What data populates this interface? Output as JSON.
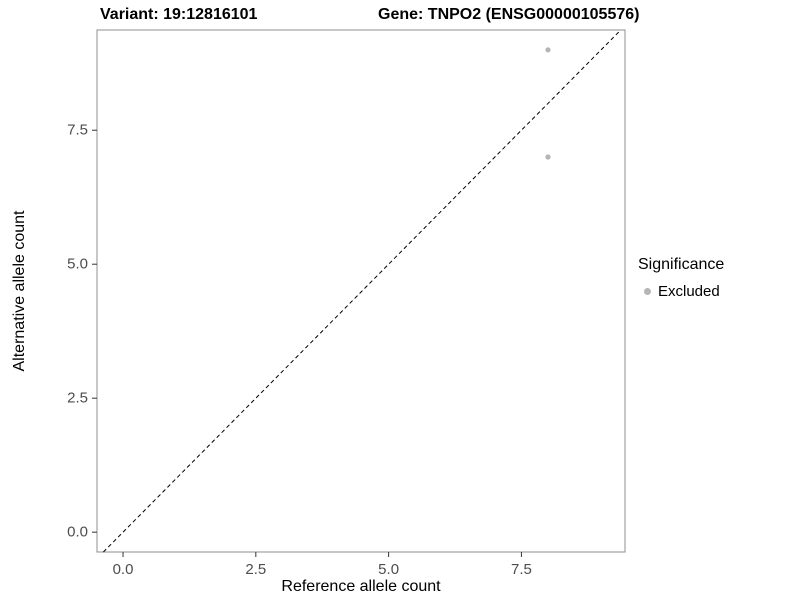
{
  "chart_data": {
    "type": "scatter",
    "title_left": "Variant: 19:12816101",
    "title_right": "Gene: TNPO2 (ENSG00000105576)",
    "xlabel": "Reference allele count",
    "ylabel": "Alternative allele count",
    "xlim": [
      -0.49,
      9.45
    ],
    "ylim": [
      -0.37,
      9.37
    ],
    "xticks": [
      0,
      2.5,
      5,
      7.5
    ],
    "xtick_labels": [
      "0.0",
      "2.5",
      "5.0",
      "7.5"
    ],
    "yticks": [
      0,
      2.5,
      5,
      7.5
    ],
    "ytick_labels": [
      "0.0",
      "2.5",
      "5.0",
      "7.5"
    ],
    "grid": false,
    "point_radius": 2.6,
    "series": [
      {
        "name": "Excluded",
        "color": "#b5b5b5",
        "points": [
          {
            "x": 8,
            "y": 9
          },
          {
            "x": 8,
            "y": 7
          }
        ]
      }
    ],
    "reference_line": {
      "type": "identity",
      "slope": 1,
      "intercept": 0,
      "style": "dashed",
      "dash": "4 3",
      "color": "#000000"
    },
    "legend": {
      "position": "right",
      "title": "Significance",
      "entries": [
        {
          "label": "Excluded",
          "color": "#b5b5b5"
        }
      ]
    },
    "panel": {
      "background": "#ffffff",
      "border_color": "#8f8f8f",
      "tick_color": "#333333",
      "tick_label_color": "#4d4d4d"
    }
  }
}
